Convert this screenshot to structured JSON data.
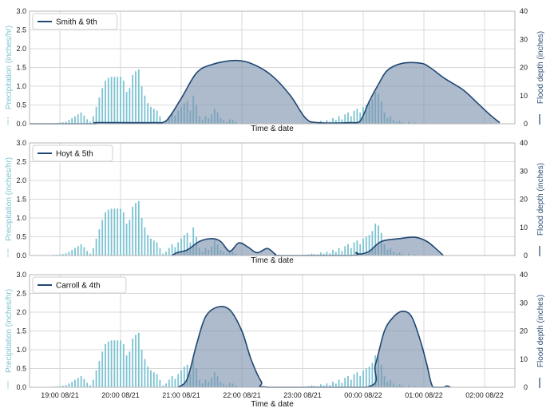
{
  "chart_data": [
    {
      "type": "bar+area",
      "title": "",
      "legend": "Smith & 9th",
      "legend_placement": "top-left",
      "xlabel": "Time & date",
      "ylabel_left": "Precipitation (inches/hr)",
      "ylabel_right": "Flood depth (inches)",
      "ylim_left": [
        0,
        3.0
      ],
      "ylim_right": [
        0,
        40
      ],
      "yticks_left": [
        "0.0",
        "0.5",
        "1.0",
        "1.5",
        "2.0",
        "2.5",
        "3.0"
      ],
      "yticks_right": [
        "0",
        "10",
        "20",
        "30",
        "40"
      ],
      "grid": true,
      "flood_depth": [
        [
          0,
          0
        ],
        [
          1.05,
          0
        ],
        [
          1.08,
          0.4
        ],
        [
          1.5,
          0.4
        ],
        [
          2.05,
          0.4
        ],
        [
          2.25,
          1.0
        ],
        [
          2.5,
          9
        ],
        [
          2.75,
          18
        ],
        [
          3.0,
          21
        ],
        [
          3.4,
          22.5
        ],
        [
          3.7,
          21
        ],
        [
          4.0,
          17
        ],
        [
          4.3,
          10
        ],
        [
          4.55,
          2
        ],
        [
          4.75,
          0.4
        ],
        [
          5.3,
          0.4
        ],
        [
          5.45,
          1
        ],
        [
          5.6,
          8
        ],
        [
          5.75,
          14
        ],
        [
          5.9,
          19
        ],
        [
          6.15,
          21.5
        ],
        [
          6.45,
          21.5
        ],
        [
          6.6,
          20
        ],
        [
          6.85,
          16
        ],
        [
          7.15,
          12
        ],
        [
          7.4,
          7
        ],
        [
          7.6,
          3
        ],
        [
          7.75,
          0.4
        ]
      ]
    },
    {
      "type": "bar+area",
      "title": "",
      "legend": "Hoyt & 5th",
      "legend_placement": "top-left",
      "xlabel": "Time & date",
      "ylabel_left": "Precipitation (inches/hr)",
      "ylabel_right": "Flood depth (inches)",
      "ylim_left": [
        0,
        3.0
      ],
      "ylim_right": [
        0,
        40
      ],
      "yticks_left": [
        "0.0",
        "0.5",
        "1.0",
        "1.5",
        "2.0",
        "2.5",
        "3.0"
      ],
      "yticks_right": [
        "0",
        "10",
        "20",
        "30",
        "40"
      ],
      "grid": true,
      "flood_depth": [
        [
          2.35,
          0
        ],
        [
          2.43,
          1
        ],
        [
          2.6,
          2
        ],
        [
          2.8,
          5
        ],
        [
          3.0,
          6
        ],
        [
          3.15,
          5
        ],
        [
          3.3,
          1.5
        ],
        [
          3.45,
          4.5
        ],
        [
          3.6,
          3
        ],
        [
          3.75,
          1
        ],
        [
          3.92,
          2.5
        ],
        [
          4.05,
          0.5
        ],
        [
          4.15,
          0
        ],
        [
          5.3,
          0
        ],
        [
          5.38,
          1
        ],
        [
          5.45,
          0.5
        ],
        [
          5.6,
          1.5
        ],
        [
          5.8,
          5
        ],
        [
          6.1,
          6
        ],
        [
          6.35,
          6.5
        ],
        [
          6.55,
          5
        ],
        [
          6.72,
          2
        ],
        [
          6.82,
          0
        ]
      ]
    },
    {
      "type": "bar+area",
      "title": "",
      "legend": "Carroll & 4th",
      "legend_placement": "top-left",
      "xlabel": "Time & date",
      "ylabel_left": "Precipitation (inches/hr)",
      "ylabel_right": "Flood depth (inches)",
      "ylim_left": [
        0,
        3.0
      ],
      "ylim_right": [
        0,
        40
      ],
      "yticks_left": [
        "0.0",
        "0.5",
        "1.0",
        "1.5",
        "2.0",
        "2.5",
        "3.0"
      ],
      "yticks_right": [
        "0",
        "10",
        "20",
        "30",
        "40"
      ],
      "grid": true,
      "xticks": [
        "19:00 08/21",
        "20:00 08/21",
        "21:00 08/21",
        "22:00 08/21",
        "23:00 08/21",
        "00:00 08/22",
        "01:00 08/22",
        "02:00 08/22"
      ],
      "flood_depth": [
        [
          2.45,
          0
        ],
        [
          2.6,
          3
        ],
        [
          2.75,
          15
        ],
        [
          2.9,
          25
        ],
        [
          3.1,
          28.5
        ],
        [
          3.3,
          27.5
        ],
        [
          3.5,
          20
        ],
        [
          3.65,
          10
        ],
        [
          3.82,
          2
        ],
        [
          3.95,
          0
        ],
        [
          5.55,
          0
        ],
        [
          5.7,
          8
        ],
        [
          5.85,
          20
        ],
        [
          6.0,
          25
        ],
        [
          6.15,
          27
        ],
        [
          6.3,
          25
        ],
        [
          6.45,
          16
        ],
        [
          6.55,
          8
        ],
        [
          6.65,
          0
        ],
        [
          6.82,
          0
        ],
        [
          6.88,
          0.5
        ],
        [
          6.94,
          0
        ]
      ]
    }
  ],
  "precipitation": [
    [
      0.3,
      0.01
    ],
    [
      0.35,
      0.01
    ],
    [
      0.4,
      0.02
    ],
    [
      0.45,
      0.02
    ],
    [
      0.5,
      0.03
    ],
    [
      0.55,
      0.04
    ],
    [
      0.6,
      0.06
    ],
    [
      0.65,
      0.1
    ],
    [
      0.7,
      0.15
    ],
    [
      0.75,
      0.2
    ],
    [
      0.8,
      0.25
    ],
    [
      0.85,
      0.3
    ],
    [
      0.9,
      0.22
    ],
    [
      0.95,
      0.12
    ],
    [
      1.0,
      0.05
    ],
    [
      1.05,
      0.2
    ],
    [
      1.1,
      0.45
    ],
    [
      1.15,
      0.7
    ],
    [
      1.2,
      0.95
    ],
    [
      1.25,
      1.15
    ],
    [
      1.3,
      1.22
    ],
    [
      1.35,
      1.25
    ],
    [
      1.4,
      1.25
    ],
    [
      1.45,
      1.25
    ],
    [
      1.5,
      1.25
    ],
    [
      1.55,
      1.15
    ],
    [
      1.6,
      0.85
    ],
    [
      1.65,
      0.95
    ],
    [
      1.7,
      1.3
    ],
    [
      1.75,
      1.4
    ],
    [
      1.8,
      1.45
    ],
    [
      1.85,
      1.0
    ],
    [
      1.9,
      0.75
    ],
    [
      1.95,
      0.55
    ],
    [
      2.0,
      0.45
    ],
    [
      2.05,
      0.4
    ],
    [
      2.1,
      0.35
    ],
    [
      2.15,
      0.2
    ],
    [
      2.2,
      0.05
    ],
    [
      2.25,
      0.1
    ],
    [
      2.3,
      0.2
    ],
    [
      2.35,
      0.3
    ],
    [
      2.4,
      0.22
    ],
    [
      2.45,
      0.35
    ],
    [
      2.5,
      0.45
    ],
    [
      2.55,
      0.55
    ],
    [
      2.6,
      0.6
    ],
    [
      2.65,
      0.35
    ],
    [
      2.7,
      0.75
    ],
    [
      2.75,
      0.5
    ],
    [
      2.8,
      0.2
    ],
    [
      2.85,
      0.1
    ],
    [
      2.9,
      0.2
    ],
    [
      2.95,
      0.15
    ],
    [
      3.0,
      0.25
    ],
    [
      3.05,
      0.4
    ],
    [
      3.1,
      0.3
    ],
    [
      3.15,
      0.15
    ],
    [
      3.2,
      0.1
    ],
    [
      3.25,
      0.05
    ],
    [
      3.3,
      0.12
    ],
    [
      3.35,
      0.1
    ],
    [
      3.4,
      0.05
    ],
    [
      3.5,
      0.03
    ],
    [
      3.6,
      0.02
    ],
    [
      4.55,
      0.02
    ],
    [
      4.6,
      0.03
    ],
    [
      4.65,
      0.05
    ],
    [
      4.7,
      0.04
    ],
    [
      4.75,
      0.03
    ],
    [
      4.8,
      0.08
    ],
    [
      4.85,
      0.05
    ],
    [
      4.9,
      0.1
    ],
    [
      4.95,
      0.06
    ],
    [
      5.0,
      0.15
    ],
    [
      5.05,
      0.1
    ],
    [
      5.1,
      0.2
    ],
    [
      5.15,
      0.12
    ],
    [
      5.2,
      0.25
    ],
    [
      5.25,
      0.3
    ],
    [
      5.3,
      0.2
    ],
    [
      5.35,
      0.35
    ],
    [
      5.4,
      0.4
    ],
    [
      5.45,
      0.3
    ],
    [
      5.5,
      0.45
    ],
    [
      5.55,
      0.5
    ],
    [
      5.6,
      0.55
    ],
    [
      5.65,
      0.65
    ],
    [
      5.7,
      0.85
    ],
    [
      5.75,
      0.8
    ],
    [
      5.8,
      0.6
    ],
    [
      5.85,
      0.3
    ],
    [
      5.9,
      0.15
    ],
    [
      5.95,
      0.2
    ],
    [
      6.0,
      0.1
    ],
    [
      6.05,
      0.05
    ],
    [
      6.1,
      0.08
    ],
    [
      6.15,
      0.04
    ],
    [
      6.25,
      0.05
    ],
    [
      6.35,
      0.03
    ]
  ],
  "colors": {
    "precip": "#7cc3d2",
    "flood_fill": "#7a91ad",
    "flood_line": "#1f4773",
    "grid": "#d9d9d9",
    "axis": "#b5b5b5"
  }
}
